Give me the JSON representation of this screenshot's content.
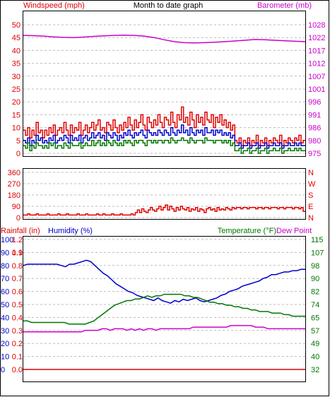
{
  "title": "Month to date graph",
  "colors": {
    "red": "#e00000",
    "blue": "#0000cc",
    "green": "#007700",
    "magenta": "#cc00cc",
    "grid": "#bbbbbb"
  },
  "chart_data": [
    {
      "type": "line",
      "panel": "wind-barometer",
      "ylabel_left": "Windspeed (mph)",
      "ylabel_right": "Barometer (mb)",
      "y_left_ticks": [
        "0",
        "5",
        "10",
        "15",
        "20",
        "25",
        "30",
        "35",
        "40",
        "45",
        "50"
      ],
      "y_left_range": [
        0,
        50
      ],
      "y_right_ticks": [
        "975",
        "980",
        "986",
        "991",
        "996",
        "1001",
        "1007",
        "1012",
        "1017",
        "1022",
        "1028"
      ],
      "y_right_range": [
        975,
        1028
      ],
      "grid": true,
      "series": [
        {
          "key": "gust",
          "color": "red",
          "axis": "left",
          "values": [
            9,
            7,
            10,
            6,
            9,
            7,
            12,
            8,
            9,
            6,
            9,
            7,
            10,
            8,
            11,
            7,
            9,
            10,
            8,
            12,
            9,
            7,
            11,
            8,
            10,
            9,
            12,
            7,
            9,
            11,
            8,
            10,
            12,
            9,
            11,
            13,
            9,
            10,
            8,
            12,
            11,
            9,
            13,
            10,
            8,
            11,
            9,
            12,
            10,
            14,
            11,
            9,
            13,
            10,
            12,
            15,
            11,
            9,
            14,
            12,
            10,
            13,
            11,
            15,
            12,
            10,
            14,
            13,
            11,
            16,
            12,
            10,
            15,
            13,
            18,
            12,
            14,
            11,
            16,
            13,
            10,
            15,
            12,
            14,
            11,
            16,
            13,
            12,
            15,
            10,
            14,
            12,
            15,
            11,
            13,
            10,
            12,
            9,
            11,
            5,
            4,
            6,
            3,
            5,
            4,
            6,
            3,
            5,
            4,
            7,
            3,
            5,
            4,
            6,
            3,
            5,
            4,
            6,
            5,
            4,
            7,
            3,
            5,
            4,
            6,
            5,
            4,
            6,
            5,
            7,
            4,
            5
          ]
        },
        {
          "key": "average",
          "color": "blue",
          "axis": "left",
          "values": [
            5,
            4,
            6,
            3,
            5,
            4,
            7,
            5,
            6,
            4,
            5,
            4,
            6,
            5,
            7,
            4,
            5,
            6,
            5,
            7,
            6,
            4,
            7,
            5,
            6,
            5,
            7,
            4,
            6,
            7,
            5,
            6,
            8,
            6,
            7,
            8,
            6,
            7,
            5,
            8,
            7,
            6,
            8,
            7,
            5,
            7,
            6,
            8,
            7,
            9,
            7,
            6,
            8,
            7,
            8,
            9,
            7,
            6,
            9,
            8,
            7,
            8,
            7,
            9,
            8,
            7,
            9,
            8,
            7,
            10,
            8,
            7,
            9,
            8,
            11,
            8,
            9,
            7,
            10,
            8,
            7,
            9,
            8,
            9,
            7,
            10,
            8,
            8,
            9,
            7,
            9,
            8,
            9,
            7,
            8,
            7,
            8,
            6,
            7,
            3,
            3,
            4,
            2,
            3,
            3,
            4,
            2,
            3,
            3,
            4,
            2,
            3,
            3,
            4,
            2,
            3,
            3,
            4,
            3,
            3,
            4,
            2,
            3,
            3,
            4,
            3,
            3,
            4,
            3,
            4,
            3,
            3
          ]
        },
        {
          "key": "lull",
          "color": "green",
          "axis": "left",
          "values": [
            3,
            2,
            4,
            1,
            3,
            2,
            4,
            3,
            3,
            2,
            3,
            2,
            4,
            3,
            4,
            2,
            3,
            3,
            2,
            4,
            3,
            2,
            4,
            3,
            3,
            3,
            4,
            2,
            3,
            4,
            3,
            3,
            5,
            3,
            4,
            5,
            3,
            4,
            3,
            5,
            4,
            3,
            5,
            4,
            3,
            4,
            3,
            5,
            4,
            5,
            4,
            3,
            5,
            4,
            5,
            5,
            4,
            3,
            5,
            5,
            4,
            5,
            4,
            5,
            5,
            4,
            5,
            5,
            4,
            6,
            5,
            4,
            5,
            5,
            6,
            5,
            5,
            4,
            6,
            5,
            4,
            5,
            5,
            5,
            4,
            6,
            5,
            5,
            5,
            4,
            5,
            5,
            5,
            4,
            5,
            4,
            5,
            3,
            4,
            1,
            1,
            2,
            0,
            1,
            1,
            2,
            0,
            1,
            1,
            2,
            0,
            1,
            1,
            2,
            0,
            1,
            1,
            2,
            1,
            1,
            2,
            0,
            1,
            1,
            2,
            1,
            1,
            2,
            1,
            2,
            1,
            1
          ]
        },
        {
          "key": "barometer",
          "color": "magenta",
          "axis": "right",
          "values": [
            1023.6,
            1023.5,
            1023.3,
            1023.0,
            1022.8,
            1022.7,
            1022.9,
            1023.2,
            1023.4,
            1023.6,
            1023.7,
            1023.6,
            1023.3,
            1022.7,
            1021.8,
            1021.0,
            1020.6,
            1020.5,
            1020.6,
            1020.8,
            1021.0,
            1021.3,
            1021.6,
            1021.9,
            1021.8,
            1021.6,
            1021.4,
            1021.2,
            1021.0
          ]
        }
      ]
    },
    {
      "type": "line",
      "panel": "direction",
      "y_left_ticks": [
        "0",
        "90",
        "180",
        "270",
        "360"
      ],
      "y_left_range": [
        0,
        360
      ],
      "y_right_ticks": [
        "N",
        "E",
        "S",
        "W",
        "N"
      ],
      "grid": true,
      "series": [
        {
          "key": "direction",
          "color": "red",
          "axis": "left",
          "values": [
            20,
            20,
            30,
            20,
            20,
            20,
            30,
            20,
            20,
            20,
            20,
            30,
            20,
            20,
            20,
            20,
            30,
            20,
            20,
            20,
            30,
            20,
            20,
            20,
            20,
            30,
            20,
            20,
            20,
            30,
            20,
            20,
            20,
            20,
            30,
            20,
            20,
            30,
            20,
            20,
            20,
            30,
            20,
            20,
            20,
            30,
            20,
            20,
            20,
            20,
            30,
            20,
            40,
            60,
            40,
            70,
            50,
            40,
            60,
            80,
            60,
            50,
            70,
            90,
            60,
            80,
            100,
            60,
            90,
            70,
            50,
            80,
            60,
            90,
            70,
            60,
            80,
            50,
            70,
            60,
            80,
            50,
            70,
            60,
            40,
            70,
            80,
            60,
            70,
            50,
            80,
            60,
            70,
            60,
            80,
            70,
            60,
            80,
            70,
            80,
            80,
            70,
            80,
            80,
            70,
            80,
            80,
            80,
            70,
            80,
            80,
            70,
            80,
            80,
            70,
            80,
            80,
            80,
            70,
            80,
            80,
            70,
            80,
            80,
            80,
            70,
            80,
            80,
            70,
            80,
            50
          ]
        }
      ]
    },
    {
      "type": "line",
      "panel": "temp-humidity-rain",
      "ylabel_left": "Rainfall (in)",
      "ylabel_left2": "Humidity (%)",
      "ylabel_right": "Temperature (°F)",
      "ylabel_right2": "Dew Point",
      "rain_ticks": [
        "0.0",
        "0.1",
        "0.2",
        "0.3",
        "0.4",
        "0.5",
        "0.6",
        "0.7",
        "0.8",
        "0.9",
        "1.1",
        "1.2"
      ],
      "humidity_ticks": [
        "0",
        "10",
        "20",
        "30",
        "40",
        "50",
        "60",
        "70",
        "80",
        "90",
        "100"
      ],
      "temp_ticks": [
        "32",
        "40",
        "49",
        "57",
        "65",
        "74",
        "82",
        "90",
        "98",
        "107",
        "115"
      ],
      "temp_range": [
        32,
        115
      ],
      "humidity_range": [
        0,
        100
      ],
      "grid": true,
      "series": [
        {
          "key": "humidity",
          "color": "blue",
          "axis": "humidity",
          "values": [
            80,
            81,
            81,
            81,
            81,
            81,
            81,
            81,
            81,
            80,
            79,
            81,
            81,
            82,
            83,
            84,
            83,
            80,
            77,
            74,
            72,
            69,
            66,
            64,
            62,
            60,
            59,
            57,
            56,
            55,
            54,
            53,
            55,
            53,
            52,
            51,
            53,
            52,
            54,
            53,
            54,
            55,
            53,
            52,
            53,
            54,
            55,
            57,
            58,
            60,
            61,
            62,
            64,
            65,
            66,
            67,
            68,
            70,
            71,
            73,
            73,
            74,
            75,
            75,
            76,
            76,
            77,
            77
          ]
        },
        {
          "key": "temperature",
          "color": "green",
          "axis": "temp",
          "values": [
            63,
            63,
            62,
            62,
            62,
            62,
            62,
            62,
            62,
            62,
            62,
            61,
            61,
            61,
            61,
            61,
            62,
            63,
            65,
            67,
            69,
            71,
            73,
            74,
            75,
            76,
            76,
            77,
            77,
            78,
            79,
            78,
            79,
            79,
            80,
            80,
            80,
            80,
            80,
            79,
            79,
            78,
            78,
            77,
            76,
            75,
            75,
            74,
            74,
            73,
            73,
            72,
            72,
            71,
            71,
            70,
            70,
            69,
            69,
            69,
            68,
            68,
            68,
            67,
            67,
            66,
            66,
            66,
            66
          ]
        },
        {
          "key": "dewpoint",
          "color": "magenta",
          "axis": "temp",
          "values": [
            56,
            56,
            56,
            56,
            56,
            56,
            56,
            56,
            56,
            56,
            56,
            56,
            56,
            56,
            56,
            57,
            57,
            57,
            57,
            58,
            58,
            57,
            58,
            58,
            58,
            57,
            58,
            57,
            58,
            57,
            58,
            58,
            57,
            58,
            58,
            58,
            58,
            58,
            58,
            58,
            58,
            59,
            59,
            59,
            59,
            59,
            59,
            59,
            59,
            59,
            60,
            60,
            60,
            60,
            60,
            60,
            59,
            59,
            59,
            58,
            58,
            58,
            58,
            58,
            58,
            58,
            58,
            58,
            58
          ]
        },
        {
          "key": "rainfall",
          "color": "red",
          "axis": "rain",
          "values": [
            0,
            0,
            0,
            0,
            0,
            0,
            0,
            0,
            0,
            0,
            0,
            0,
            0,
            0,
            0,
            0,
            0,
            0,
            0,
            0
          ]
        }
      ]
    }
  ]
}
